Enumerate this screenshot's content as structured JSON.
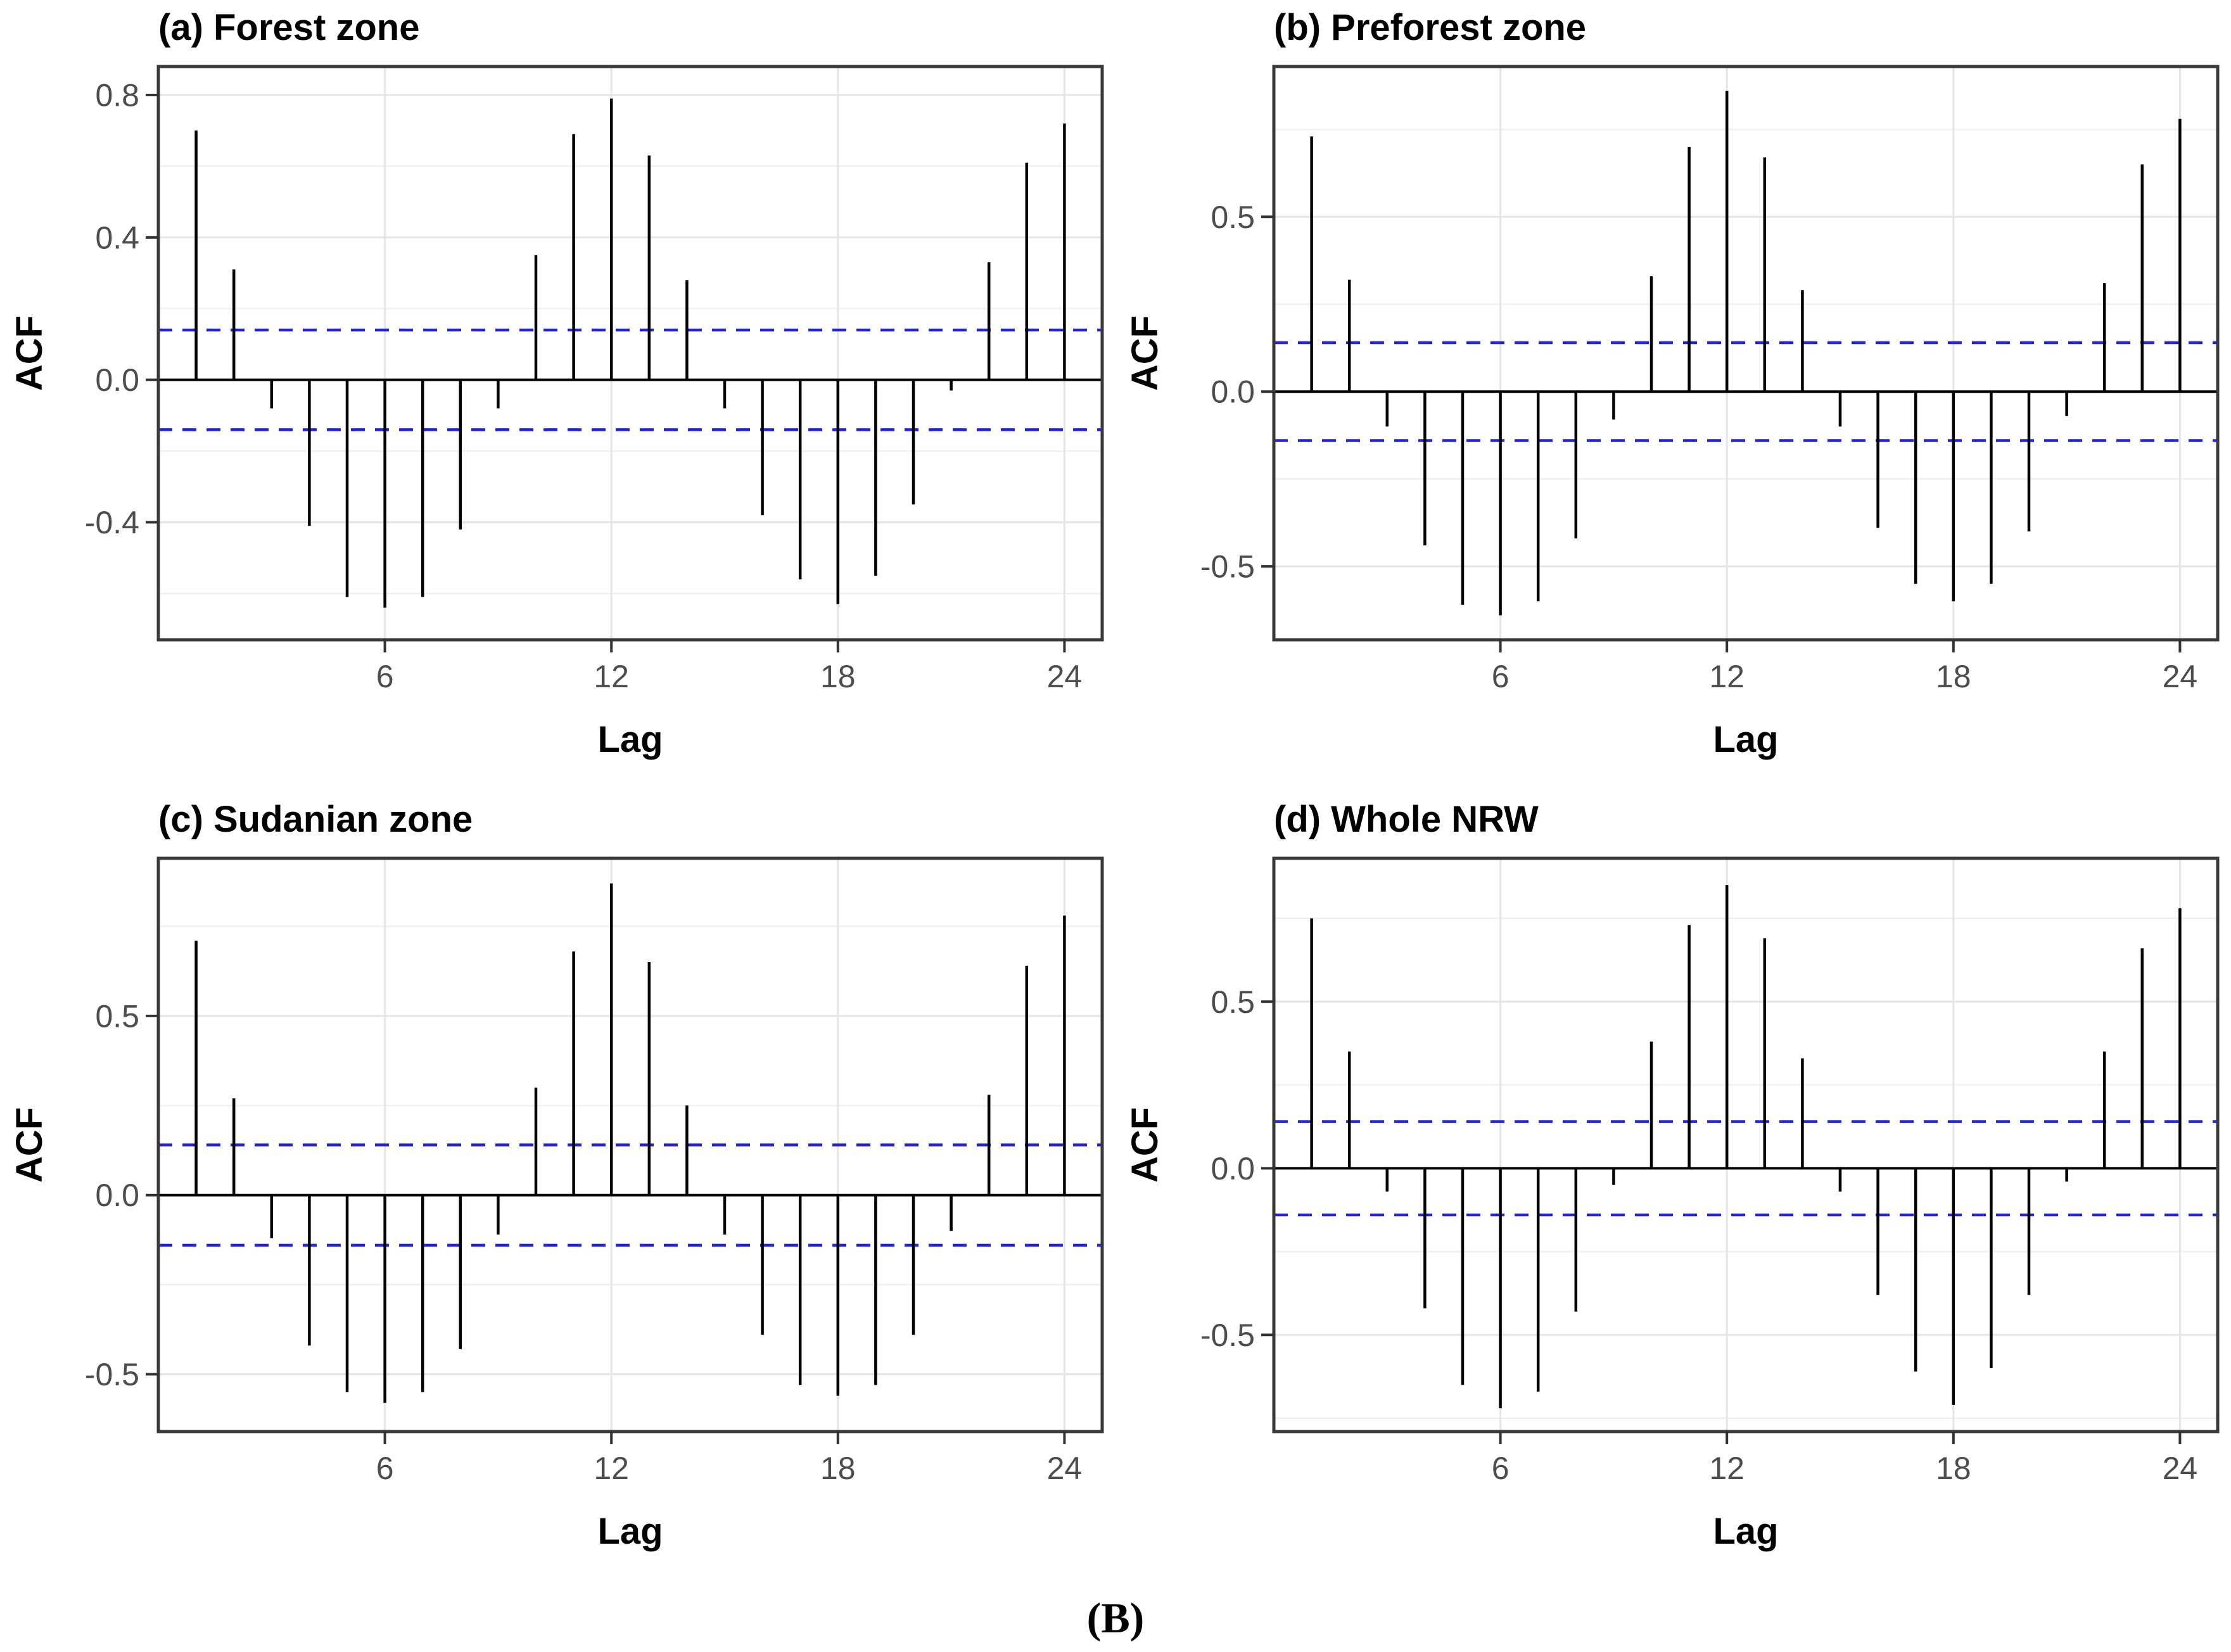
{
  "page": {
    "caption": "(B)",
    "background": "#ffffff"
  },
  "style": {
    "bar_color": "#000000",
    "zero_line_color": "#000000",
    "ci_color": "#2222dd",
    "grid_major_color": "#e5e5e5",
    "grid_minor_color": "#f0f0f0",
    "panel_border_color": "#3a3a3a",
    "tick_mark_color": "#333333",
    "tick_label_color": "#4d4d4d",
    "axis_title_color": "#000000",
    "title_color": "#000000"
  },
  "shared_axes": {
    "x_label": "Lag",
    "y_label": "ACF",
    "x_ticks": [
      6,
      12,
      18,
      24
    ]
  },
  "confidence_bounds": {
    "upper": 0.14,
    "lower": -0.14
  },
  "chart_data": [
    {
      "type": "bar",
      "id": "a",
      "title": "(a) Forest zone",
      "xlabel": "Lag",
      "ylabel": "ACF",
      "x": [
        1,
        2,
        3,
        4,
        5,
        6,
        7,
        8,
        9,
        10,
        11,
        12,
        13,
        14,
        15,
        16,
        17,
        18,
        19,
        20,
        21,
        22,
        23,
        24
      ],
      "values": [
        0.7,
        0.31,
        -0.08,
        -0.41,
        -0.61,
        -0.64,
        -0.61,
        -0.42,
        -0.08,
        0.35,
        0.69,
        0.79,
        0.63,
        0.28,
        -0.08,
        -0.38,
        -0.56,
        -0.63,
        -0.55,
        -0.35,
        -0.03,
        0.33,
        0.61,
        0.72
      ],
      "ci": [
        -0.14,
        0.14
      ],
      "x_ticks": [
        6,
        12,
        18,
        24
      ],
      "xlim": [
        0,
        25
      ],
      "y_ticks": [
        0.8,
        0.4,
        0.0,
        -0.4
      ],
      "y_tick_labels": [
        "0.8",
        "0.4",
        "0.0",
        "-0.4"
      ],
      "y_minor_step": 0.2,
      "ylim": [
        -0.73,
        0.88
      ],
      "grid": true,
      "legend": "none"
    },
    {
      "type": "bar",
      "id": "b",
      "title": "(b) Preforest zone",
      "xlabel": "Lag",
      "ylabel": "ACF",
      "x": [
        1,
        2,
        3,
        4,
        5,
        6,
        7,
        8,
        9,
        10,
        11,
        12,
        13,
        14,
        15,
        16,
        17,
        18,
        19,
        20,
        21,
        22,
        23,
        24
      ],
      "values": [
        0.73,
        0.32,
        -0.1,
        -0.44,
        -0.61,
        -0.64,
        -0.6,
        -0.42,
        -0.08,
        0.33,
        0.7,
        0.86,
        0.67,
        0.29,
        -0.1,
        -0.39,
        -0.55,
        -0.6,
        -0.55,
        -0.4,
        -0.07,
        0.31,
        0.65,
        0.78
      ],
      "ci": [
        -0.14,
        0.14
      ],
      "x_ticks": [
        6,
        12,
        18,
        24
      ],
      "xlim": [
        0,
        25
      ],
      "y_ticks": [
        0.5,
        0.0,
        -0.5
      ],
      "y_tick_labels": [
        "0.5",
        "0.0",
        "-0.5"
      ],
      "y_minor_step": 0.25,
      "ylim": [
        -0.71,
        0.93
      ],
      "grid": true,
      "legend": "none"
    },
    {
      "type": "bar",
      "id": "c",
      "title": "(c) Sudanian zone",
      "xlabel": "Lag",
      "ylabel": "ACF",
      "x": [
        1,
        2,
        3,
        4,
        5,
        6,
        7,
        8,
        9,
        10,
        11,
        12,
        13,
        14,
        15,
        16,
        17,
        18,
        19,
        20,
        21,
        22,
        23,
        24
      ],
      "values": [
        0.71,
        0.27,
        -0.12,
        -0.42,
        -0.55,
        -0.58,
        -0.55,
        -0.43,
        -0.11,
        0.3,
        0.68,
        0.87,
        0.65,
        0.25,
        -0.11,
        -0.39,
        -0.53,
        -0.56,
        -0.53,
        -0.39,
        -0.1,
        0.28,
        0.64,
        0.78
      ],
      "ci": [
        -0.14,
        0.14
      ],
      "x_ticks": [
        6,
        12,
        18,
        24
      ],
      "xlim": [
        0,
        25
      ],
      "y_ticks": [
        0.5,
        0.0,
        -0.5
      ],
      "y_tick_labels": [
        "0.5",
        "0.0",
        "-0.5"
      ],
      "y_minor_step": 0.25,
      "ylim": [
        -0.66,
        0.94
      ],
      "grid": true,
      "legend": "none"
    },
    {
      "type": "bar",
      "id": "d",
      "title": "(d) Whole NRW",
      "xlabel": "Lag",
      "ylabel": "ACF",
      "x": [
        1,
        2,
        3,
        4,
        5,
        6,
        7,
        8,
        9,
        10,
        11,
        12,
        13,
        14,
        15,
        16,
        17,
        18,
        19,
        20,
        21,
        22,
        23,
        24
      ],
      "values": [
        0.75,
        0.35,
        -0.07,
        -0.42,
        -0.65,
        -0.72,
        -0.67,
        -0.43,
        -0.05,
        0.38,
        0.73,
        0.85,
        0.69,
        0.33,
        -0.07,
        -0.38,
        -0.61,
        -0.71,
        -0.6,
        -0.38,
        -0.04,
        0.35,
        0.66,
        0.78
      ],
      "ci": [
        -0.14,
        0.14
      ],
      "x_ticks": [
        6,
        12,
        18,
        24
      ],
      "xlim": [
        0,
        25
      ],
      "y_ticks": [
        0.5,
        0.0,
        -0.5
      ],
      "y_tick_labels": [
        "0.5",
        "0.0",
        "-0.5"
      ],
      "y_minor_step": 0.25,
      "ylim": [
        -0.79,
        0.93
      ],
      "grid": true,
      "legend": "none"
    }
  ]
}
